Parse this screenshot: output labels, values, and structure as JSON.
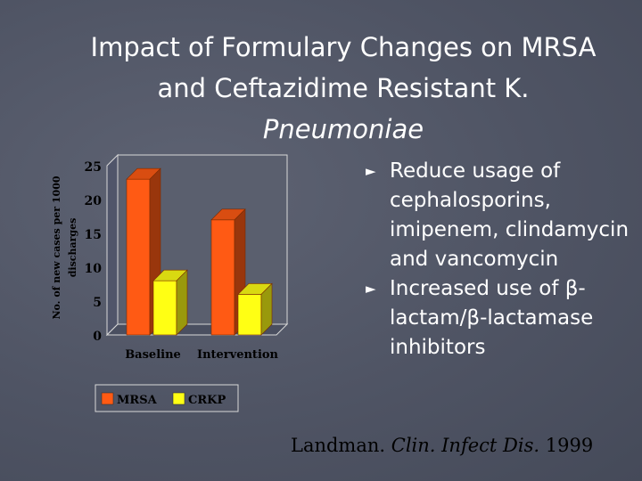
{
  "slide": {
    "title_line1": "Impact of Formulary Changes on MRSA",
    "title_line2": "and Ceftazidime Resistant K.",
    "title_line3": "Pneumoniae"
  },
  "bullets": [
    {
      "arrow": "►",
      "text": "Reduce usage of cephalosporins, imipenem, clindamycin and vancomycin"
    },
    {
      "arrow": "►",
      "text": "Increased use of β-lactam/β-lactamase inhibitors"
    }
  ],
  "citation": {
    "author": "Landman.",
    "journal": "Clin. Infect Dis.",
    "year": "1999"
  },
  "chart_data": {
    "type": "bar",
    "categories": [
      "Baseline",
      "Intervention"
    ],
    "series": [
      {
        "name": "MRSA",
        "values": [
          23,
          17
        ],
        "color": "#ff5a14"
      },
      {
        "name": "CRKP",
        "values": [
          8,
          6
        ],
        "color": "#ffff14"
      }
    ],
    "ylabel": "No. of new cases per 1000 discharges",
    "ylim": [
      0,
      25
    ],
    "yticks": [
      "0",
      "5",
      "10",
      "15",
      "20",
      "25"
    ],
    "legend_position": "bottom",
    "grid": false,
    "style": "3d"
  }
}
